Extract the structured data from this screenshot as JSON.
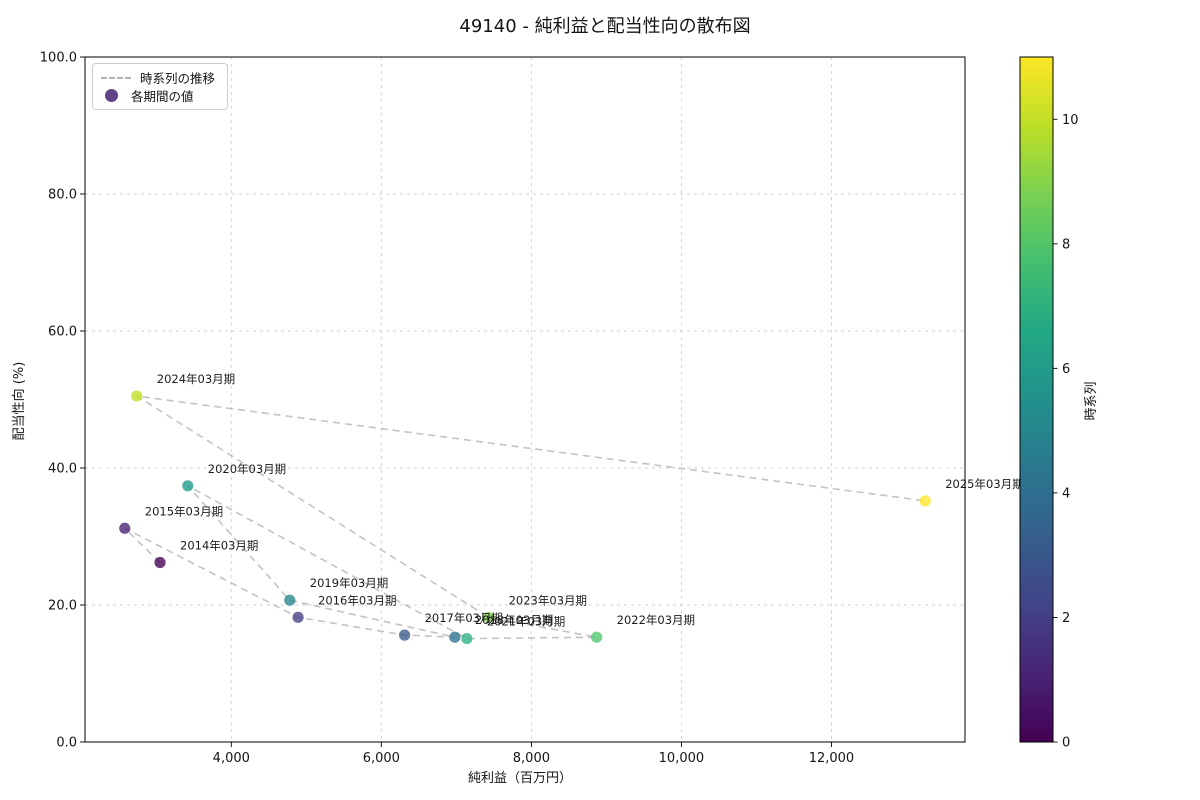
{
  "title": "49140 - 純利益と配当性向の散布図",
  "legend": {
    "line_label": "時系列の推移",
    "point_label": "各期間の値",
    "marker_color": "#482173",
    "line_color": "#b3b3b3"
  },
  "colorbar": {
    "label": "時系列",
    "vmin": 0,
    "vmax": 11,
    "ticks": [
      0,
      2,
      4,
      6,
      8,
      10
    ],
    "gradient": [
      "#440154",
      "#482475",
      "#414487",
      "#355f8d",
      "#2a788e",
      "#21918c",
      "#22a884",
      "#44bf70",
      "#7ad151",
      "#bddf26",
      "#fde725"
    ]
  },
  "chart_data": {
    "type": "scatter",
    "title": "49140 - 純利益と配当性向の散布図",
    "xlabel": "純利益（百万円）",
    "ylabel": "配当性向 (%)",
    "xlim": [
      2050,
      13780
    ],
    "ylim": [
      0,
      100
    ],
    "x_ticks": [
      4000,
      6000,
      8000,
      10000,
      12000
    ],
    "x_tick_labels": [
      "4,000",
      "6,000",
      "8,000",
      "10,000",
      "12,000"
    ],
    "y_ticks": [
      0,
      20,
      40,
      60,
      80,
      100
    ],
    "y_tick_labels": [
      "0.0",
      "20.0",
      "40.0",
      "60.0",
      "80.0",
      "100.0"
    ],
    "grid": true,
    "legend_position": "upper left",
    "grid_color": "#d0d0d0",
    "trail_color": "#bdbdbd",
    "points": [
      {
        "period": "2014年03月期",
        "x": 3050,
        "y": 26.2,
        "t": 0,
        "color": "#440154"
      },
      {
        "period": "2015年03月期",
        "x": 2580,
        "y": 31.2,
        "t": 1,
        "color": "#482173"
      },
      {
        "period": "2016年03月期",
        "x": 4890,
        "y": 18.2,
        "t": 2,
        "color": "#433e85"
      },
      {
        "period": "2017年03月期",
        "x": 6310,
        "y": 15.6,
        "t": 3,
        "color": "#38598c"
      },
      {
        "period": "2018年03月期",
        "x": 6980,
        "y": 15.3,
        "t": 4,
        "color": "#2d708e"
      },
      {
        "period": "2019年03月期",
        "x": 4780,
        "y": 20.7,
        "t": 5,
        "color": "#25858e"
      },
      {
        "period": "2020年03月期",
        "x": 3420,
        "y": 37.4,
        "t": 6,
        "color": "#1e9b8a"
      },
      {
        "period": "2021年03月期",
        "x": 7140,
        "y": 15.1,
        "t": 7,
        "color": "#2ab07f"
      },
      {
        "period": "2022年03月期",
        "x": 8870,
        "y": 15.3,
        "t": 8,
        "color": "#51c56a"
      },
      {
        "period": "2023年03月期",
        "x": 7430,
        "y": 18.2,
        "t": 9,
        "color": "#85d54a"
      },
      {
        "period": "2024年03月期",
        "x": 2740,
        "y": 50.5,
        "t": 10,
        "color": "#c2df23"
      },
      {
        "period": "2025年03月期",
        "x": 13250,
        "y": 35.2,
        "t": 11,
        "color": "#fde725"
      }
    ]
  }
}
